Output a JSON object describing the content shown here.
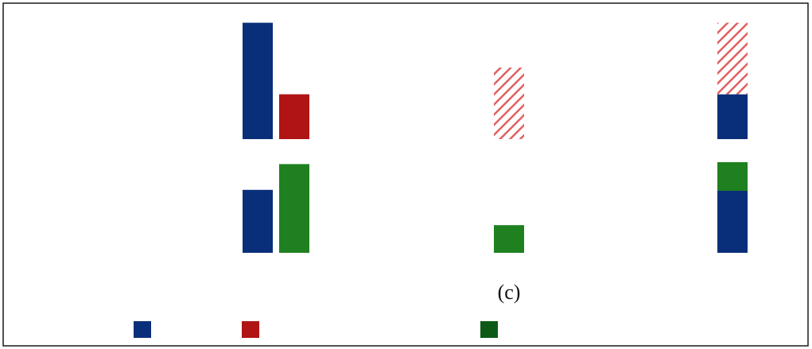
{
  "figure": {
    "panel_label": "(c)"
  },
  "colors": {
    "blue": "#0a2f7a",
    "red": "#b01414",
    "red_hatch": "#e06060",
    "green": "#1f8020",
    "dark_green": "#0d5a16",
    "frame": "#1a1a1a"
  },
  "chart_data": {
    "type": "bar",
    "stacked_in_last_group": true,
    "grid": false,
    "legend_position": "bottom",
    "legend": [
      {
        "color_key": "blue",
        "label": ""
      },
      {
        "color_key": "red",
        "label": ""
      },
      {
        "color_key": "dark_green",
        "label": ""
      }
    ],
    "rows": [
      {
        "ylim": [
          0,
          125
        ],
        "groups": [
          {
            "bars": [
              {
                "color_key": "blue",
                "value": 122
              },
              {
                "color_key": "red",
                "value": 47
              }
            ]
          },
          {
            "bars": [
              {
                "color_key": "red",
                "value": 75,
                "hatched": true
              }
            ]
          },
          {
            "stacked": true,
            "bars": [
              {
                "color_key": "blue",
                "value": 47
              },
              {
                "color_key": "red",
                "value": 75,
                "hatched": true
              }
            ]
          }
        ]
      },
      {
        "ylim": [
          0,
          125
        ],
        "groups": [
          {
            "bars": [
              {
                "color_key": "blue",
                "value": 66
              },
              {
                "color_key": "green",
                "value": 93
              }
            ]
          },
          {
            "bars": [
              {
                "color_key": "green",
                "value": 29
              }
            ]
          },
          {
            "stacked": true,
            "bars": [
              {
                "color_key": "blue",
                "value": 65
              },
              {
                "color_key": "green",
                "value": 30
              }
            ]
          }
        ]
      }
    ]
  }
}
